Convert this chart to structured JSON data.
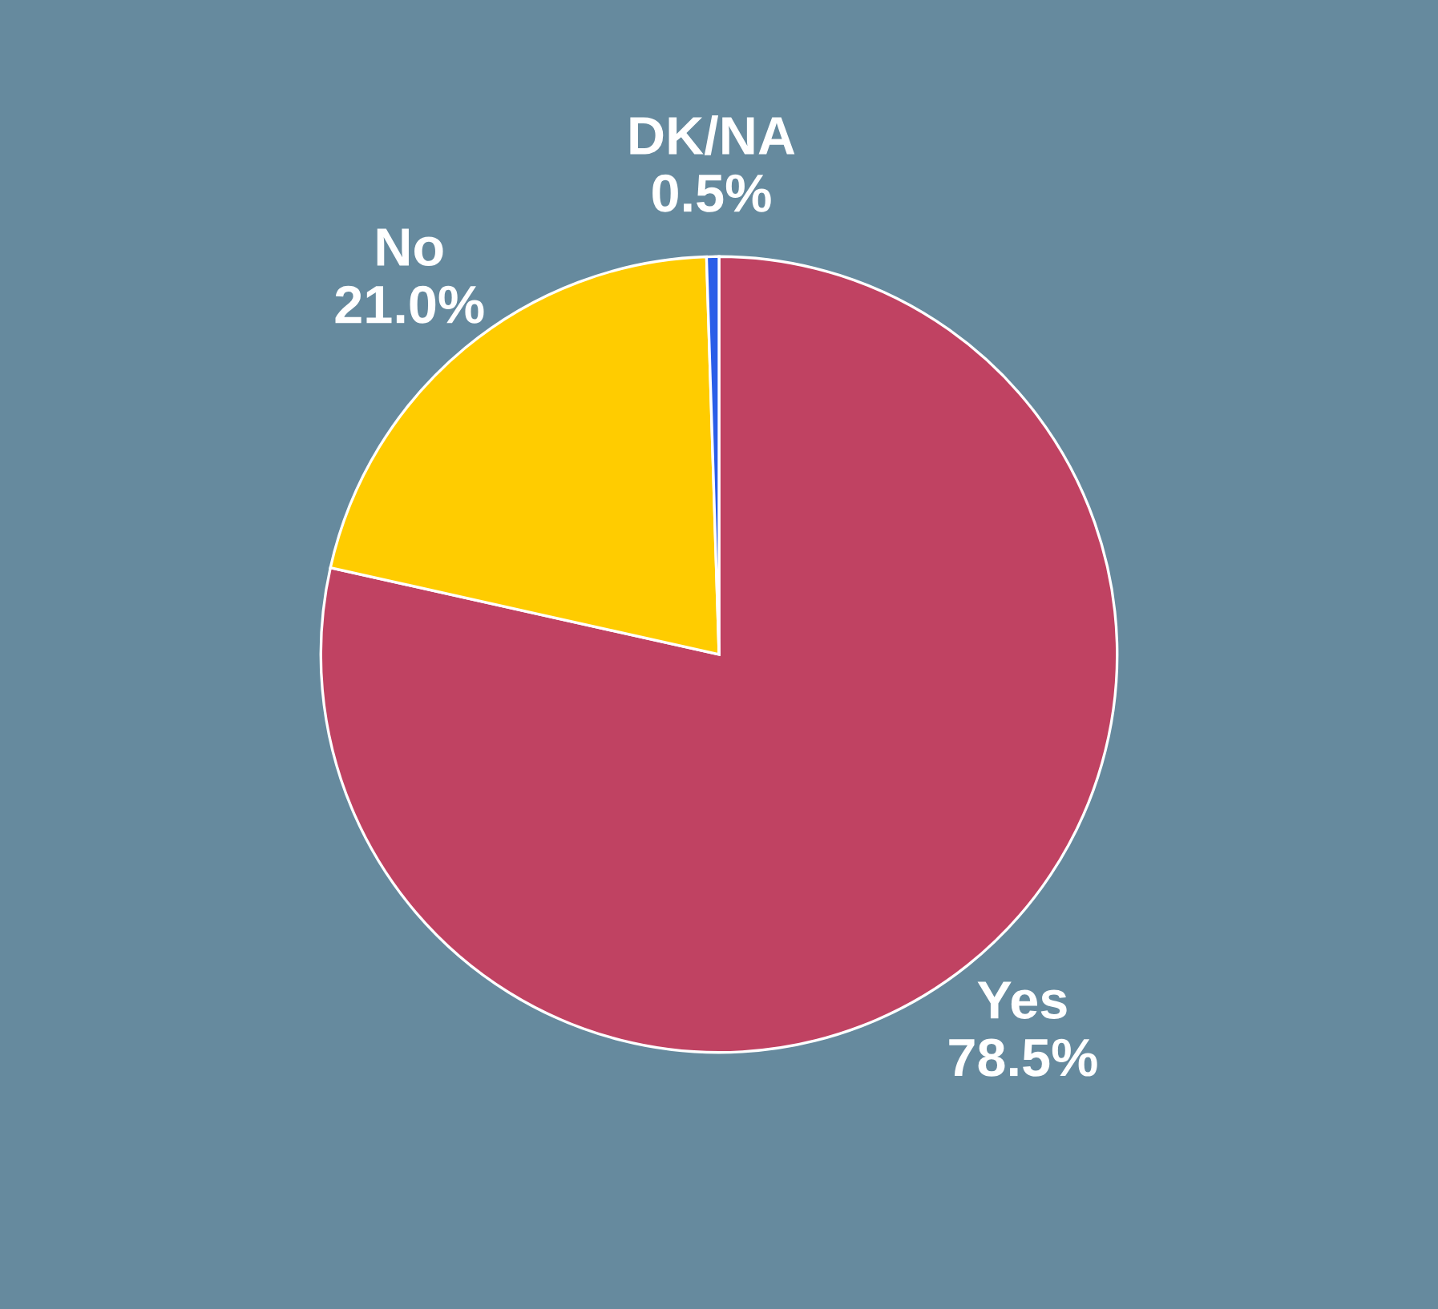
{
  "chart_data": {
    "type": "pie",
    "categories": [
      "Yes",
      "No",
      "DK/NA"
    ],
    "values": [
      78.5,
      21.0,
      0.5
    ],
    "value_labels": [
      "78.5%",
      "21.0%",
      "0.5%"
    ],
    "colors": [
      "#c04262",
      "#ffcc00",
      "#2a5ee8"
    ]
  }
}
